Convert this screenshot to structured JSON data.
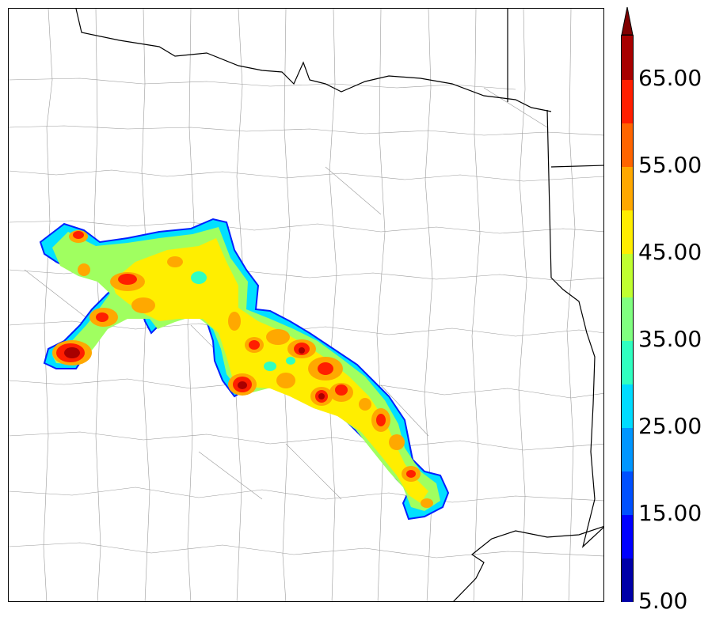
{
  "map": {
    "colorbar": {
      "labels": [
        "5.00",
        "15.00",
        "25.00",
        "35.00",
        "45.00",
        "55.00",
        "65.00"
      ],
      "colors": [
        "#0000a8",
        "#0000ff",
        "#0050ff",
        "#0096ff",
        "#00dcff",
        "#30ffc0",
        "#80ff80",
        "#c0ff30",
        "#ffee00",
        "#ffa800",
        "#ff6400",
        "#ff1e00",
        "#a80000",
        "#800000"
      ],
      "extend": "max"
    }
  }
}
